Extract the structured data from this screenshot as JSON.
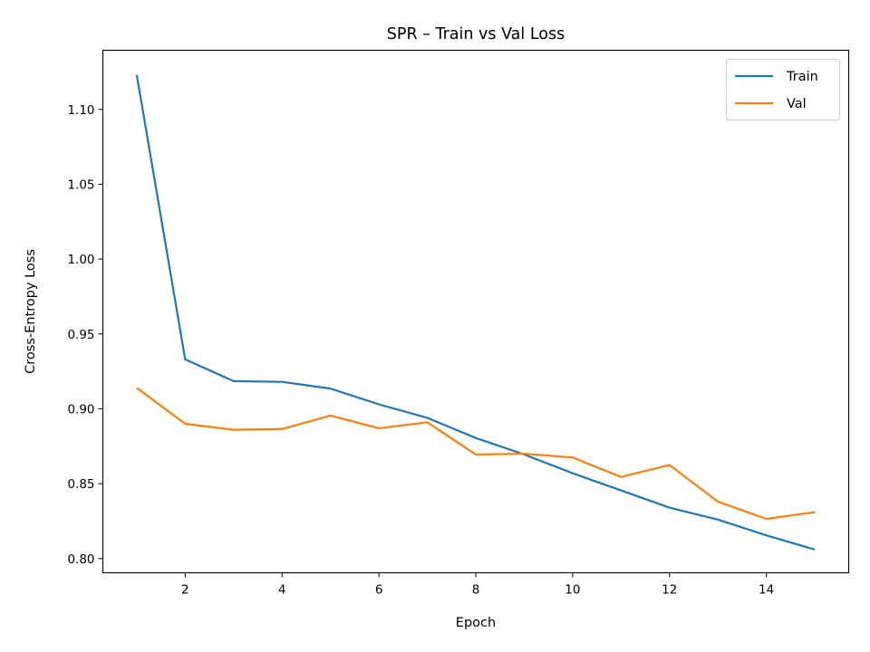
{
  "chart_data": {
    "type": "line",
    "title": "SPR – Train vs Val Loss",
    "xlabel": "Epoch",
    "ylabel": "Cross-Entropy Loss",
    "x": [
      1,
      2,
      3,
      4,
      5,
      6,
      7,
      8,
      9,
      10,
      11,
      12,
      13,
      14,
      15
    ],
    "xlim": [
      0.3,
      15.7
    ],
    "ylim": [
      0.7905,
      1.1395
    ],
    "xticks": [
      2,
      4,
      6,
      8,
      10,
      12,
      14
    ],
    "xtick_labels": [
      "2",
      "4",
      "6",
      "8",
      "10",
      "12",
      "14"
    ],
    "yticks": [
      0.8,
      0.85,
      0.9,
      0.95,
      1.0,
      1.05,
      1.1
    ],
    "ytick_labels": [
      "0.80",
      "0.85",
      "0.90",
      "0.95",
      "1.00",
      "1.05",
      "1.10"
    ],
    "grid": false,
    "legend_position": "top-right",
    "series": [
      {
        "name": "Train",
        "color": "#1f77b4",
        "values": [
          1.123,
          0.933,
          0.9185,
          0.918,
          0.9135,
          0.903,
          0.894,
          0.8805,
          0.8695,
          0.857,
          0.8455,
          0.834,
          0.826,
          0.8155,
          0.806
        ]
      },
      {
        "name": "Val",
        "color": "#ff7f0e",
        "values": [
          0.914,
          0.89,
          0.886,
          0.8865,
          0.8955,
          0.887,
          0.891,
          0.8695,
          0.87,
          0.8675,
          0.8545,
          0.8625,
          0.838,
          0.8265,
          0.831
        ]
      }
    ]
  }
}
